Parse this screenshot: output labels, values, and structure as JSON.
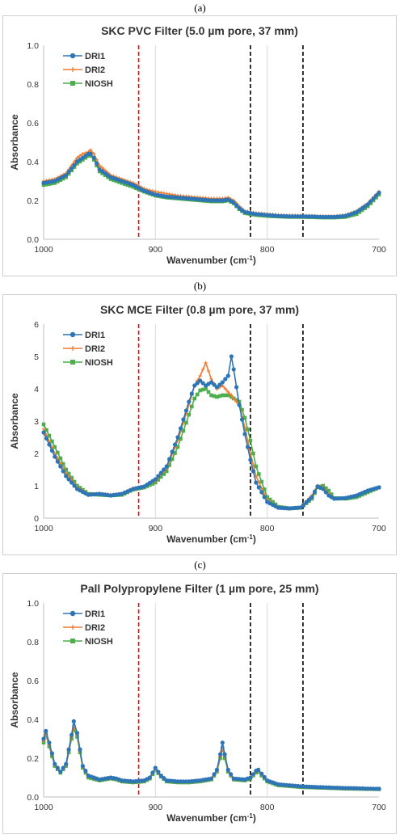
{
  "panels": [
    {
      "tag": "(a)"
    },
    {
      "tag": "(b)"
    },
    {
      "tag": "(c)"
    }
  ],
  "colors": {
    "DRI1": "#2e75b6",
    "DRI2": "#ed7d31",
    "NIOSH": "#4cae4c",
    "red_line": "#ff0000",
    "black_line": "#000000",
    "grid": "#d9d9d9"
  },
  "chart_data": [
    {
      "type": "line",
      "title": "SKC PVC Filter (5.0 µm pore, 37 mm)",
      "xlabel": "Wavenumber (cm-1)",
      "ylabel": "Absorbance",
      "xlim": [
        1000,
        700
      ],
      "ylim": [
        0,
        1.0
      ],
      "yticks": [
        "0.0",
        "0.2",
        "0.4",
        "0.6",
        "0.8",
        "1.0"
      ],
      "xticks": [
        "1000",
        "900",
        "800",
        "700"
      ],
      "grid": "vertical",
      "legend": "top-left",
      "reference_lines": [
        915,
        815,
        768
      ],
      "series": [
        {
          "name": "DRI1",
          "x": [
            1000,
            990,
            980,
            970,
            965,
            960,
            958,
            955,
            950,
            940,
            930,
            920,
            910,
            900,
            890,
            880,
            870,
            860,
            850,
            840,
            835,
            830,
            825,
            820,
            810,
            800,
            790,
            780,
            770,
            760,
            750,
            740,
            730,
            720,
            710,
            700
          ],
          "y": [
            0.29,
            0.3,
            0.33,
            0.4,
            0.42,
            0.44,
            0.44,
            0.42,
            0.36,
            0.32,
            0.3,
            0.28,
            0.25,
            0.23,
            0.22,
            0.215,
            0.21,
            0.205,
            0.2,
            0.2,
            0.205,
            0.19,
            0.16,
            0.14,
            0.13,
            0.125,
            0.12,
            0.118,
            0.118,
            0.117,
            0.115,
            0.115,
            0.12,
            0.14,
            0.18,
            0.24
          ]
        },
        {
          "name": "DRI2",
          "x": [
            1000,
            990,
            980,
            970,
            965,
            960,
            958,
            955,
            950,
            940,
            930,
            920,
            910,
            900,
            890,
            880,
            870,
            860,
            850,
            840,
            835,
            830,
            825,
            820,
            810,
            800,
            790,
            780,
            770,
            760,
            750,
            740,
            730,
            720,
            710,
            700
          ],
          "y": [
            0.3,
            0.31,
            0.34,
            0.42,
            0.44,
            0.45,
            0.46,
            0.44,
            0.38,
            0.33,
            0.31,
            0.29,
            0.26,
            0.245,
            0.235,
            0.225,
            0.22,
            0.215,
            0.21,
            0.21,
            0.215,
            0.2,
            0.17,
            0.145,
            0.135,
            0.13,
            0.125,
            0.123,
            0.122,
            0.12,
            0.118,
            0.118,
            0.125,
            0.145,
            0.185,
            0.245
          ]
        },
        {
          "name": "NIOSH",
          "x": [
            1000,
            990,
            980,
            970,
            965,
            960,
            958,
            955,
            950,
            940,
            930,
            920,
            910,
            900,
            890,
            880,
            870,
            860,
            850,
            840,
            835,
            830,
            825,
            820,
            810,
            800,
            790,
            780,
            770,
            760,
            750,
            740,
            730,
            720,
            710,
            700
          ],
          "y": [
            0.28,
            0.29,
            0.32,
            0.39,
            0.41,
            0.43,
            0.43,
            0.41,
            0.35,
            0.31,
            0.29,
            0.27,
            0.245,
            0.225,
            0.215,
            0.21,
            0.205,
            0.2,
            0.195,
            0.195,
            0.2,
            0.185,
            0.155,
            0.135,
            0.125,
            0.12,
            0.117,
            0.115,
            0.115,
            0.114,
            0.112,
            0.112,
            0.115,
            0.13,
            0.17,
            0.23
          ]
        }
      ]
    },
    {
      "type": "line",
      "title": "SKC MCE Filter (0.8 µm pore, 37 mm)",
      "xlabel": "Wavenumber (cm-1)",
      "ylabel": "Absorbance",
      "xlim": [
        1000,
        700
      ],
      "ylim": [
        0,
        6
      ],
      "yticks": [
        "0",
        "1",
        "2",
        "3",
        "4",
        "5",
        "6"
      ],
      "xticks": [
        "1000",
        "900",
        "800",
        "700"
      ],
      "grid": "vertical",
      "legend": "top-left",
      "reference_lines": [
        915,
        815,
        768
      ],
      "series": [
        {
          "name": "DRI1",
          "x": [
            1000,
            990,
            980,
            970,
            960,
            950,
            940,
            930,
            920,
            910,
            900,
            890,
            880,
            870,
            865,
            860,
            855,
            850,
            845,
            840,
            835,
            832,
            830,
            825,
            820,
            815,
            810,
            800,
            790,
            780,
            770,
            760,
            755,
            750,
            745,
            740,
            730,
            720,
            710,
            700
          ],
          "y": [
            2.65,
            1.9,
            1.3,
            0.9,
            0.72,
            0.75,
            0.7,
            0.75,
            0.9,
            0.98,
            1.2,
            1.6,
            2.5,
            3.6,
            4.1,
            4.25,
            4.1,
            4.2,
            4.05,
            4.2,
            4.4,
            5.0,
            4.6,
            3.5,
            2.6,
            1.8,
            1.1,
            0.5,
            0.32,
            0.3,
            0.33,
            0.65,
            0.98,
            0.9,
            0.7,
            0.6,
            0.62,
            0.7,
            0.85,
            0.95
          ]
        },
        {
          "name": "DRI2",
          "x": [
            1000,
            990,
            980,
            970,
            960,
            950,
            940,
            930,
            920,
            910,
            900,
            890,
            880,
            870,
            865,
            860,
            855,
            850,
            845,
            840,
            835,
            832,
            830,
            825,
            820,
            815,
            810,
            800,
            790,
            780,
            770,
            760,
            755,
            750,
            745,
            740,
            730,
            720,
            710,
            700
          ],
          "y": [
            2.75,
            2.0,
            1.4,
            0.95,
            0.74,
            0.75,
            0.72,
            0.75,
            0.92,
            0.98,
            1.15,
            1.55,
            2.4,
            3.5,
            4.1,
            4.4,
            4.8,
            4.3,
            4.0,
            4.1,
            3.9,
            3.8,
            3.7,
            3.5,
            2.8,
            2.0,
            1.3,
            0.55,
            0.33,
            0.3,
            0.33,
            0.7,
            1.0,
            0.95,
            0.75,
            0.6,
            0.62,
            0.7,
            0.85,
            0.95
          ]
        },
        {
          "name": "NIOSH",
          "x": [
            1000,
            990,
            980,
            970,
            960,
            950,
            940,
            930,
            920,
            910,
            900,
            890,
            880,
            870,
            865,
            860,
            855,
            850,
            845,
            840,
            835,
            832,
            830,
            825,
            820,
            815,
            810,
            800,
            790,
            780,
            770,
            760,
            755,
            750,
            745,
            740,
            730,
            720,
            710,
            700
          ],
          "y": [
            2.9,
            2.2,
            1.5,
            1.0,
            0.75,
            0.72,
            0.7,
            0.72,
            0.88,
            0.95,
            1.1,
            1.45,
            2.2,
            3.2,
            3.7,
            3.95,
            4.0,
            3.8,
            3.75,
            3.8,
            3.8,
            3.75,
            3.7,
            3.6,
            3.1,
            2.4,
            1.6,
            0.65,
            0.35,
            0.3,
            0.32,
            0.6,
            0.95,
            1.0,
            0.85,
            0.62,
            0.6,
            0.65,
            0.8,
            0.95
          ]
        }
      ]
    },
    {
      "type": "line",
      "title": "Pall Polypropylene Filter (1 µm pore, 25 mm)",
      "xlabel": "Wavenumber (cm-1)",
      "ylabel": "Absorbance",
      "xlim": [
        1000,
        700
      ],
      "ylim": [
        0,
        1.0
      ],
      "yticks": [
        "0.0",
        "0.2",
        "0.4",
        "0.6",
        "0.8",
        "1.0"
      ],
      "xticks": [
        "1000",
        "900",
        "800",
        "700"
      ],
      "grid": "vertical",
      "legend": "top-left",
      "reference_lines": [
        915,
        815,
        768
      ],
      "series": [
        {
          "name": "DRI1",
          "x": [
            1000,
            998,
            995,
            990,
            985,
            980,
            975,
            973,
            970,
            965,
            960,
            950,
            945,
            940,
            935,
            930,
            920,
            910,
            905,
            900,
            895,
            890,
            880,
            870,
            860,
            850,
            845,
            842,
            840,
            838,
            835,
            830,
            820,
            815,
            810,
            808,
            805,
            800,
            790,
            780,
            770,
            760,
            750,
            740,
            730,
            720,
            710,
            700
          ],
          "y": [
            0.3,
            0.34,
            0.28,
            0.17,
            0.13,
            0.17,
            0.32,
            0.39,
            0.33,
            0.16,
            0.11,
            0.09,
            0.095,
            0.1,
            0.095,
            0.085,
            0.08,
            0.085,
            0.1,
            0.15,
            0.11,
            0.085,
            0.08,
            0.08,
            0.085,
            0.095,
            0.14,
            0.22,
            0.28,
            0.22,
            0.14,
            0.095,
            0.09,
            0.1,
            0.135,
            0.14,
            0.12,
            0.085,
            0.065,
            0.06,
            0.055,
            0.052,
            0.05,
            0.048,
            0.046,
            0.045,
            0.043,
            0.042
          ]
        },
        {
          "name": "DRI2",
          "x": [
            1000,
            998,
            995,
            990,
            985,
            980,
            975,
            973,
            970,
            965,
            960,
            950,
            945,
            940,
            935,
            930,
            920,
            910,
            905,
            900,
            895,
            890,
            880,
            870,
            860,
            850,
            845,
            842,
            840,
            838,
            835,
            830,
            820,
            815,
            810,
            808,
            805,
            800,
            790,
            780,
            770,
            760,
            750,
            740,
            730,
            720,
            710,
            700
          ],
          "y": [
            0.29,
            0.33,
            0.27,
            0.165,
            0.13,
            0.165,
            0.31,
            0.37,
            0.32,
            0.155,
            0.105,
            0.088,
            0.092,
            0.098,
            0.092,
            0.083,
            0.078,
            0.083,
            0.098,
            0.145,
            0.108,
            0.083,
            0.078,
            0.078,
            0.083,
            0.093,
            0.135,
            0.21,
            0.26,
            0.21,
            0.135,
            0.093,
            0.088,
            0.098,
            0.13,
            0.135,
            0.115,
            0.083,
            0.063,
            0.058,
            0.053,
            0.05,
            0.048,
            0.046,
            0.044,
            0.043,
            0.042,
            0.041
          ]
        },
        {
          "name": "NIOSH",
          "x": [
            1000,
            998,
            995,
            990,
            985,
            980,
            975,
            973,
            970,
            965,
            960,
            950,
            945,
            940,
            935,
            930,
            920,
            910,
            905,
            900,
            895,
            890,
            880,
            870,
            860,
            850,
            845,
            842,
            840,
            838,
            835,
            830,
            820,
            815,
            810,
            808,
            805,
            800,
            790,
            780,
            770,
            760,
            750,
            740,
            730,
            720,
            710,
            700
          ],
          "y": [
            0.28,
            0.32,
            0.26,
            0.16,
            0.125,
            0.16,
            0.3,
            0.35,
            0.31,
            0.15,
            0.1,
            0.085,
            0.09,
            0.095,
            0.09,
            0.08,
            0.075,
            0.08,
            0.095,
            0.14,
            0.105,
            0.08,
            0.075,
            0.075,
            0.08,
            0.09,
            0.13,
            0.2,
            0.25,
            0.2,
            0.13,
            0.09,
            0.085,
            0.095,
            0.125,
            0.13,
            0.11,
            0.08,
            0.06,
            0.056,
            0.051,
            0.049,
            0.047,
            0.045,
            0.043,
            0.042,
            0.041,
            0.04
          ]
        }
      ]
    }
  ]
}
